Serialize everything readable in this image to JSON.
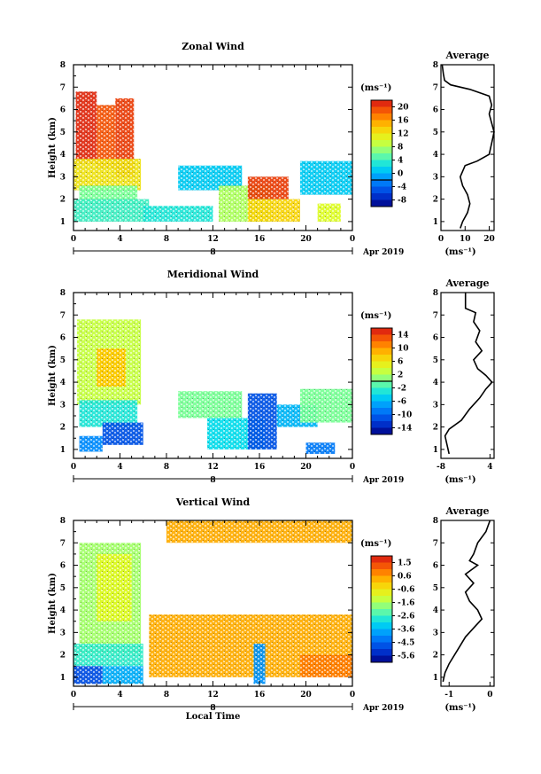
{
  "chart_data": [
    {
      "type": "heatmap",
      "title": "Zonal Wind",
      "xlabel": "",
      "ylabel": "Height (km)",
      "x_ticks": [
        "0",
        "4",
        "8",
        "12",
        "16",
        "20",
        "0"
      ],
      "y_ticks": [
        "1",
        "2",
        "3",
        "4",
        "5",
        "6",
        "7",
        "8"
      ],
      "xlim": [
        0,
        24
      ],
      "ylim": [
        0.6,
        8.0
      ],
      "date_axis": {
        "day": "8",
        "month_label": "Apr 2019"
      },
      "colorbar": {
        "unit": "(ms⁻¹)",
        "ticks": [
          "20",
          "16",
          "12",
          "8",
          "4",
          "0",
          "-4",
          "-8"
        ],
        "range": [
          -10,
          22
        ]
      },
      "regions": [
        {
          "x": [
            0.2,
            2.0
          ],
          "y": [
            3.6,
            6.8
          ],
          "value": 21
        },
        {
          "x": [
            2.0,
            3.6
          ],
          "y": [
            3.4,
            6.2
          ],
          "value": 19
        },
        {
          "x": [
            3.6,
            5.2
          ],
          "y": [
            3.0,
            6.5
          ],
          "value": 20
        },
        {
          "x": [
            0.0,
            5.8
          ],
          "y": [
            2.4,
            3.8
          ],
          "value": 12
        },
        {
          "x": [
            0.5,
            5.5
          ],
          "y": [
            1.8,
            2.6
          ],
          "value": 6
        },
        {
          "x": [
            0.0,
            6.5
          ],
          "y": [
            1.0,
            2.0
          ],
          "value": 4
        },
        {
          "x": [
            6.0,
            12.0
          ],
          "y": [
            1.0,
            1.7
          ],
          "value": 3
        },
        {
          "x": [
            9.0,
            14.5
          ],
          "y": [
            2.4,
            3.5
          ],
          "value": 1
        },
        {
          "x": [
            12.5,
            17.0
          ],
          "y": [
            1.0,
            2.6
          ],
          "value": 8
        },
        {
          "x": [
            15.0,
            18.5
          ],
          "y": [
            2.0,
            3.0
          ],
          "value": 20
        },
        {
          "x": [
            15.0,
            19.5
          ],
          "y": [
            1.0,
            2.0
          ],
          "value": 13
        },
        {
          "x": [
            19.5,
            24.0
          ],
          "y": [
            2.2,
            3.7
          ],
          "value": 1
        },
        {
          "x": [
            21.0,
            23.0
          ],
          "y": [
            1.0,
            1.8
          ],
          "value": 10
        }
      ],
      "average_profile": {
        "title": "Average",
        "xlabel": "(ms⁻¹)",
        "x_ticks": [
          "0",
          "10",
          "20"
        ],
        "xlim": [
          0,
          22
        ],
        "points": [
          [
            0.5,
            8.0
          ],
          [
            1.0,
            7.6
          ],
          [
            1.5,
            7.3
          ],
          [
            4.0,
            7.1
          ],
          [
            12.0,
            6.9
          ],
          [
            20.0,
            6.6
          ],
          [
            21.0,
            6.2
          ],
          [
            20.0,
            5.8
          ],
          [
            22.0,
            5.0
          ],
          [
            21.0,
            4.5
          ],
          [
            20.0,
            4.0
          ],
          [
            15.0,
            3.7
          ],
          [
            10.0,
            3.5
          ],
          [
            8.0,
            3.0
          ],
          [
            9.0,
            2.6
          ],
          [
            11.0,
            2.2
          ],
          [
            12.0,
            1.8
          ],
          [
            11.0,
            1.4
          ],
          [
            9.0,
            1.0
          ],
          [
            8.0,
            0.7
          ]
        ]
      }
    },
    {
      "type": "heatmap",
      "title": "Meridional Wind",
      "xlabel": "",
      "ylabel": "Height (km)",
      "x_ticks": [
        "0",
        "4",
        "8",
        "12",
        "16",
        "20",
        "0"
      ],
      "y_ticks": [
        "1",
        "2",
        "3",
        "4",
        "5",
        "6",
        "7",
        "8"
      ],
      "xlim": [
        0,
        24
      ],
      "ylim": [
        0.6,
        8.0
      ],
      "date_axis": {
        "day": "8",
        "month_label": "Apr 2019"
      },
      "colorbar": {
        "unit": "(ms⁻¹)",
        "ticks": [
          "14",
          "10",
          "6",
          "2",
          "-2",
          "-6",
          "-10",
          "-14"
        ],
        "range": [
          -16,
          16
        ]
      },
      "regions": [
        {
          "x": [
            0.3,
            5.8
          ],
          "y": [
            3.0,
            6.8
          ],
          "value": 3
        },
        {
          "x": [
            2.0,
            4.5
          ],
          "y": [
            3.8,
            5.5
          ],
          "value": 8
        },
        {
          "x": [
            0.5,
            5.5
          ],
          "y": [
            2.0,
            3.2
          ],
          "value": -3
        },
        {
          "x": [
            2.5,
            6.0
          ],
          "y": [
            1.2,
            2.2
          ],
          "value": -11
        },
        {
          "x": [
            0.5,
            2.5
          ],
          "y": [
            0.9,
            1.6
          ],
          "value": -8
        },
        {
          "x": [
            9.0,
            14.5
          ],
          "y": [
            2.4,
            3.6
          ],
          "value": 0
        },
        {
          "x": [
            11.5,
            16.5
          ],
          "y": [
            1.0,
            2.4
          ],
          "value": -4
        },
        {
          "x": [
            15.0,
            17.5
          ],
          "y": [
            1.0,
            3.5
          ],
          "value": -11
        },
        {
          "x": [
            17.5,
            21.0
          ],
          "y": [
            2.0,
            3.0
          ],
          "value": -6
        },
        {
          "x": [
            19.5,
            24.0
          ],
          "y": [
            2.2,
            3.7
          ],
          "value": 0
        },
        {
          "x": [
            20.0,
            22.5
          ],
          "y": [
            0.8,
            1.3
          ],
          "value": -9
        }
      ],
      "average_profile": {
        "title": "Average",
        "xlabel": "(ms⁻¹)",
        "x_ticks": [
          "-8",
          "4"
        ],
        "xlim": [
          -8,
          5
        ],
        "points": [
          [
            -2.0,
            8.0
          ],
          [
            -2.0,
            7.3
          ],
          [
            0.5,
            7.1
          ],
          [
            0.0,
            6.7
          ],
          [
            1.5,
            6.3
          ],
          [
            0.5,
            5.8
          ],
          [
            2.0,
            5.4
          ],
          [
            0.0,
            5.0
          ],
          [
            1.0,
            4.6
          ],
          [
            3.0,
            4.3
          ],
          [
            4.5,
            4.0
          ],
          [
            3.0,
            3.7
          ],
          [
            1.5,
            3.3
          ],
          [
            -1.0,
            2.8
          ],
          [
            -3.0,
            2.3
          ],
          [
            -6.0,
            1.9
          ],
          [
            -7.0,
            1.6
          ],
          [
            -6.5,
            1.2
          ],
          [
            -6.0,
            0.8
          ]
        ]
      }
    },
    {
      "type": "heatmap",
      "title": "Vertical Wind",
      "xlabel": "Local Time",
      "ylabel": "Height (km)",
      "x_ticks": [
        "0",
        "4",
        "8",
        "12",
        "16",
        "20",
        "0"
      ],
      "y_ticks": [
        "1",
        "2",
        "3",
        "4",
        "5",
        "6",
        "7",
        "8"
      ],
      "xlim": [
        0,
        24
      ],
      "ylim": [
        0.6,
        8.0
      ],
      "date_axis": {
        "day": "8",
        "month_label": "Apr 2019"
      },
      "colorbar": {
        "unit": "(ms⁻¹)",
        "ticks": [
          "1.5",
          "0.6",
          "-0.6",
          "-1.6",
          "-2.6",
          "-3.6",
          "-4.5",
          "-5.6"
        ],
        "range": [
          -6.0,
          2.0
        ]
      },
      "regions": [
        {
          "x": [
            0.5,
            5.8
          ],
          "y": [
            2.0,
            7.0
          ],
          "value": -1.6
        },
        {
          "x": [
            2.0,
            5.0
          ],
          "y": [
            3.5,
            6.5
          ],
          "value": -0.9
        },
        {
          "x": [
            0.0,
            6.0
          ],
          "y": [
            1.5,
            2.5
          ],
          "value": -2.6
        },
        {
          "x": [
            0.0,
            2.5
          ],
          "y": [
            0.7,
            1.5
          ],
          "value": -4.8
        },
        {
          "x": [
            2.5,
            6.0
          ],
          "y": [
            0.7,
            1.5
          ],
          "value": -3.6
        },
        {
          "x": [
            6.5,
            24.0
          ],
          "y": [
            1.0,
            3.8
          ],
          "value": 0.3
        },
        {
          "x": [
            15.5,
            16.5
          ],
          "y": [
            0.7,
            2.5
          ],
          "value": -3.9
        },
        {
          "x": [
            19.5,
            24.0
          ],
          "y": [
            1.0,
            2.0
          ],
          "value": 0.8
        },
        {
          "x": [
            8.0,
            24.0
          ],
          "y": [
            7.0,
            8.0
          ],
          "value": 0.3
        }
      ],
      "average_profile": {
        "title": "Average",
        "xlabel": "(ms⁻¹)",
        "x_ticks": [
          "-1",
          "0"
        ],
        "xlim": [
          -1.2,
          0.1
        ],
        "points": [
          [
            0.0,
            8.0
          ],
          [
            -0.1,
            7.5
          ],
          [
            -0.3,
            7.0
          ],
          [
            -0.4,
            6.5
          ],
          [
            -0.5,
            6.2
          ],
          [
            -0.3,
            6.0
          ],
          [
            -0.6,
            5.6
          ],
          [
            -0.4,
            5.2
          ],
          [
            -0.6,
            4.8
          ],
          [
            -0.5,
            4.4
          ],
          [
            -0.3,
            4.0
          ],
          [
            -0.2,
            3.6
          ],
          [
            -0.4,
            3.2
          ],
          [
            -0.6,
            2.8
          ],
          [
            -0.8,
            2.2
          ],
          [
            -1.0,
            1.6
          ],
          [
            -1.1,
            1.2
          ],
          [
            -1.15,
            0.8
          ]
        ]
      }
    }
  ]
}
